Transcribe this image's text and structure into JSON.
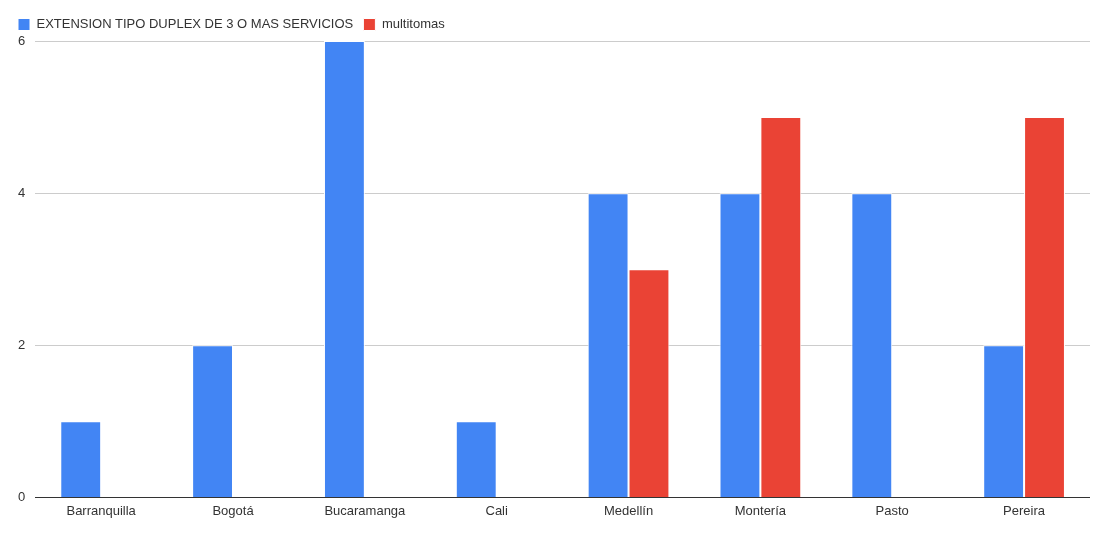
{
  "chart_data": {
    "type": "bar",
    "categories": [
      "Barranquilla",
      "Bogotá",
      "Bucaramanga",
      "Cali",
      "Medellín",
      "Montería",
      "Pasto",
      "Pereira"
    ],
    "series": [
      {
        "name": "EXTENSION TIPO DUPLEX DE 3 O MAS SERVICIOS",
        "color": "#4285f4",
        "values": [
          1,
          2,
          6,
          1,
          4,
          4,
          4,
          2
        ]
      },
      {
        "name": "multitomas",
        "color": "#ea4335",
        "values": [
          null,
          null,
          null,
          null,
          3,
          5,
          null,
          5
        ]
      }
    ],
    "ylim": [
      0,
      6
    ],
    "yticks": [
      0,
      2,
      4,
      6
    ],
    "grid": "y",
    "legend": "top left"
  }
}
